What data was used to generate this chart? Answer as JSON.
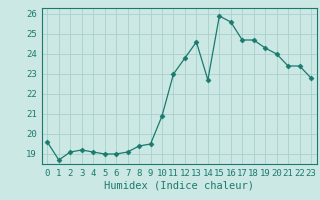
{
  "x": [
    0,
    1,
    2,
    3,
    4,
    5,
    6,
    7,
    8,
    9,
    10,
    11,
    12,
    13,
    14,
    15,
    16,
    17,
    18,
    19,
    20,
    21,
    22,
    23
  ],
  "y": [
    19.6,
    18.7,
    19.1,
    19.2,
    19.1,
    19.0,
    19.0,
    19.1,
    19.4,
    19.5,
    20.9,
    23.0,
    23.8,
    24.6,
    22.7,
    25.9,
    25.6,
    24.7,
    24.7,
    24.3,
    24.0,
    23.4,
    23.4,
    22.8
  ],
  "line_color": "#1a7a6e",
  "marker": "D",
  "marker_size": 2.5,
  "bg_color": "#cce8e4",
  "grid_color": "#aacfcb",
  "xlabel": "Humidex (Indice chaleur)",
  "xlim": [
    -0.5,
    23.5
  ],
  "ylim": [
    18.5,
    26.3
  ],
  "yticks": [
    19,
    20,
    21,
    22,
    23,
    24,
    25,
    26
  ],
  "xticks": [
    0,
    1,
    2,
    3,
    4,
    5,
    6,
    7,
    8,
    9,
    10,
    11,
    12,
    13,
    14,
    15,
    16,
    17,
    18,
    19,
    20,
    21,
    22,
    23
  ],
  "xtick_labels": [
    "0",
    "1",
    "2",
    "3",
    "4",
    "5",
    "6",
    "7",
    "8",
    "9",
    "10",
    "11",
    "12",
    "13",
    "14",
    "15",
    "16",
    "17",
    "18",
    "19",
    "20",
    "21",
    "22",
    "23"
  ],
  "tick_fontsize": 6.5,
  "xlabel_fontsize": 7.5
}
